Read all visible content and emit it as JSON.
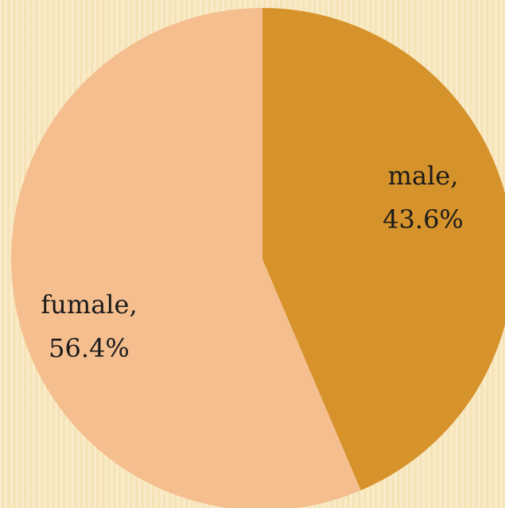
{
  "chart_data": {
    "type": "pie",
    "categories": [
      "male",
      "fumale"
    ],
    "values": [
      43.6,
      56.4
    ],
    "value_labels": [
      "43.6%",
      "56.4%"
    ],
    "label_texts": [
      {
        "name": "male,",
        "value": "43.6%"
      },
      {
        "name": "fumale,",
        "value": "56.4%"
      }
    ],
    "colors": [
      "#d6922b",
      "#f5be8f"
    ],
    "start_angle": "12 o'clock",
    "direction": "clockwise",
    "legend": "none"
  }
}
